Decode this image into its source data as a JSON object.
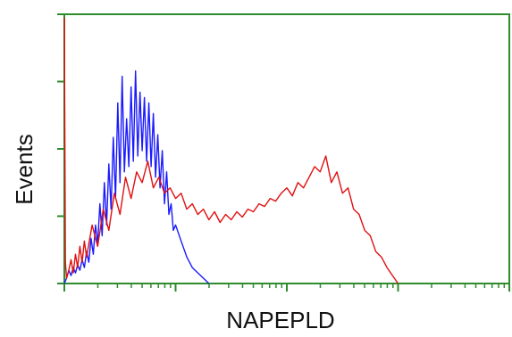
{
  "chart_data": {
    "type": "line",
    "xlabel": "NAPEPLD",
    "ylabel": "Events",
    "x_scale": "log",
    "grid": false,
    "series": [
      {
        "color": "#1a1aff",
        "x": [
          0.0,
          0.02,
          0.04,
          0.06,
          0.08,
          0.1,
          0.12,
          0.14,
          0.16,
          0.18,
          0.2,
          0.22,
          0.24,
          0.26,
          0.28,
          0.3,
          0.32,
          0.34,
          0.36,
          0.38,
          0.4,
          0.42,
          0.44,
          0.46,
          0.48,
          0.5,
          0.52,
          0.54,
          0.56,
          0.58,
          0.6,
          0.62,
          0.64,
          0.66,
          0.68,
          0.7,
          0.72,
          0.74,
          0.76,
          0.78,
          0.8,
          0.82,
          0.84,
          0.86,
          0.88,
          0.9,
          0.92,
          0.94,
          0.96,
          0.98,
          1.0,
          1.05,
          1.1,
          1.15,
          1.2,
          1.25,
          1.3
        ],
        "values": [
          0,
          0.02,
          0.05,
          0.03,
          0.06,
          0.04,
          0.07,
          0.05,
          0.09,
          0.06,
          0.12,
          0.08,
          0.17,
          0.11,
          0.22,
          0.15,
          0.3,
          0.18,
          0.38,
          0.22,
          0.45,
          0.28,
          0.55,
          0.32,
          0.68,
          0.38,
          0.78,
          0.42,
          0.62,
          0.44,
          0.74,
          0.46,
          0.8,
          0.48,
          0.72,
          0.5,
          0.7,
          0.46,
          0.68,
          0.44,
          0.64,
          0.4,
          0.56,
          0.36,
          0.5,
          0.3,
          0.42,
          0.26,
          0.3,
          0.2,
          0.22,
          0.16,
          0.1,
          0.06,
          0.04,
          0.02,
          0
        ]
      },
      {
        "color": "#e01010",
        "x": [
          0.0,
          0.01,
          0.02,
          0.04,
          0.06,
          0.08,
          0.1,
          0.12,
          0.14,
          0.16,
          0.18,
          0.2,
          0.25,
          0.3,
          0.35,
          0.4,
          0.45,
          0.5,
          0.55,
          0.6,
          0.65,
          0.7,
          0.75,
          0.8,
          0.85,
          0.9,
          0.95,
          1.0,
          1.05,
          1.1,
          1.15,
          1.2,
          1.25,
          1.3,
          1.35,
          1.4,
          1.45,
          1.5,
          1.55,
          1.6,
          1.65,
          1.7,
          1.75,
          1.8,
          1.85,
          1.9,
          1.95,
          2.0,
          2.05,
          2.1,
          2.15,
          2.2,
          2.25,
          2.3,
          2.35,
          2.4,
          2.45,
          2.5,
          2.55,
          2.6,
          2.65,
          2.7,
          2.75,
          2.8,
          2.85,
          2.9,
          2.95,
          3.0
        ],
        "values": [
          1.0,
          0.08,
          0.02,
          0.05,
          0.09,
          0.04,
          0.11,
          0.06,
          0.14,
          0.08,
          0.16,
          0.1,
          0.22,
          0.14,
          0.28,
          0.2,
          0.34,
          0.26,
          0.4,
          0.32,
          0.42,
          0.38,
          0.46,
          0.36,
          0.4,
          0.34,
          0.36,
          0.32,
          0.34,
          0.28,
          0.3,
          0.26,
          0.28,
          0.24,
          0.27,
          0.23,
          0.26,
          0.24,
          0.27,
          0.25,
          0.28,
          0.27,
          0.3,
          0.29,
          0.32,
          0.31,
          0.34,
          0.36,
          0.33,
          0.38,
          0.36,
          0.4,
          0.44,
          0.42,
          0.48,
          0.38,
          0.42,
          0.34,
          0.36,
          0.28,
          0.26,
          0.2,
          0.18,
          0.12,
          0.1,
          0.06,
          0.03,
          0.0
        ]
      }
    ],
    "colors": {
      "frame": "#2e8b2e",
      "text": "#111111"
    }
  }
}
